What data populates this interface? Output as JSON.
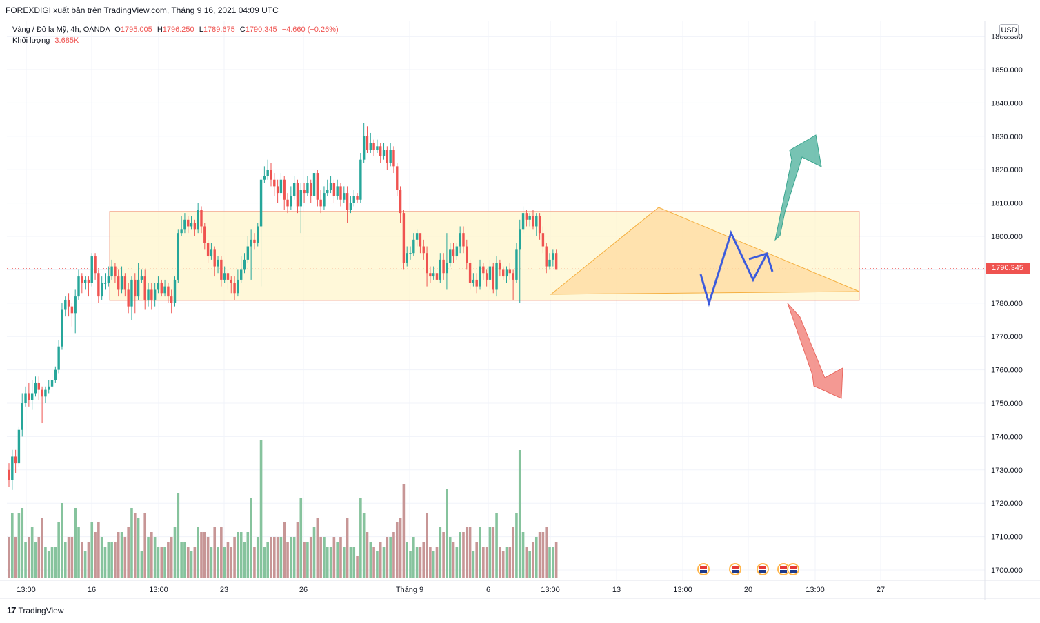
{
  "header": {
    "publish_text": "FOREXDIGI xuất bản trên TradingView.com, Tháng 9 16, 2021 04:09 UTC"
  },
  "legend": {
    "symbol": "Vàng / Đô la Mỹ, 4h, OANDA",
    "open_label": "O",
    "open": "1795.005",
    "high_label": "H",
    "high": "1796.250",
    "low_label": "L",
    "low": "1789.675",
    "close_label": "C",
    "close": "1790.345",
    "change": "−4.660 (−0.26%)",
    "volume_label": "Khối lượng",
    "volume": "3.685K"
  },
  "currency_badge": "USD",
  "last_price_tag": "1790.345",
  "footer": {
    "logo_icon": "tradingview-logo-icon",
    "brand": "TradingView"
  },
  "colors": {
    "up": "#26a69a",
    "down": "#ef5350",
    "vol_up": "#86c39d",
    "vol_down": "#c79696",
    "range_box": "#fff5cc",
    "triangle": "#ffd08a",
    "path": "#3c5bdc",
    "arrow_up": "#5fb9a6",
    "arrow_down": "#f28780"
  },
  "chart_data": {
    "type": "candlestick",
    "symbol": "Vàng / Đô la Mỹ",
    "interval": "4h",
    "exchange": "OANDA",
    "y_axis": {
      "ticks": [
        1700,
        1710,
        1720,
        1730,
        1740,
        1750,
        1760,
        1770,
        1780,
        1790,
        1800,
        1810,
        1820,
        1830,
        1840,
        1850,
        1860
      ],
      "tick_labels": [
        "1700.000",
        "1710.000",
        "1720.000",
        "1730.000",
        "1740.000",
        "1750.000",
        "1760.000",
        "1770.000",
        "1780.000",
        "1790.000",
        "1800.000",
        "1810.000",
        "1820.000",
        "1830.000",
        "1840.000",
        "1850.000",
        "1860.000"
      ],
      "ylim": [
        1697,
        1862
      ]
    },
    "x_axis": {
      "tick_labels": [
        "13:00",
        "16",
        "13:00",
        "23",
        "26",
        "Tháng 9",
        "6",
        "13:00",
        "13",
        "13:00",
        "20",
        "13:00",
        "27"
      ]
    },
    "last_price": 1790.345,
    "candles": [
      [
        1730,
        1727,
        1732,
        1725
      ],
      [
        1727,
        1734,
        1736,
        1724
      ],
      [
        1734,
        1732,
        1736,
        1729
      ],
      [
        1732,
        1742,
        1743,
        1731
      ],
      [
        1742,
        1750,
        1753,
        1740
      ],
      [
        1750,
        1753,
        1755,
        1749
      ],
      [
        1753,
        1751,
        1756,
        1749
      ],
      [
        1751,
        1753,
        1757,
        1748
      ],
      [
        1753,
        1756,
        1758,
        1752
      ],
      [
        1756,
        1754,
        1758,
        1751
      ],
      [
        1754,
        1752,
        1755,
        1744
      ],
      [
        1752,
        1754,
        1755,
        1750
      ],
      [
        1754,
        1755,
        1757,
        1753
      ],
      [
        1755,
        1757,
        1759,
        1754
      ],
      [
        1757,
        1760,
        1761,
        1756
      ],
      [
        1760,
        1767,
        1769,
        1759
      ],
      [
        1767,
        1778,
        1780,
        1766
      ],
      [
        1778,
        1781,
        1782,
        1776
      ],
      [
        1781,
        1779,
        1783,
        1776
      ],
      [
        1779,
        1777,
        1780,
        1773
      ],
      [
        1777,
        1782,
        1784,
        1771
      ],
      [
        1782,
        1788,
        1790,
        1781
      ],
      [
        1788,
        1786,
        1789,
        1783
      ],
      [
        1786,
        1787,
        1788,
        1784
      ],
      [
        1787,
        1786,
        1788,
        1782
      ],
      [
        1786,
        1794,
        1795,
        1785
      ],
      [
        1794,
        1789,
        1795,
        1787
      ],
      [
        1789,
        1782,
        1790,
        1780
      ],
      [
        1782,
        1786,
        1788,
        1781
      ],
      [
        1786,
        1786,
        1789,
        1784
      ],
      [
        1786,
        1788,
        1791,
        1785
      ],
      [
        1788,
        1791,
        1793,
        1787
      ],
      [
        1791,
        1788,
        1792,
        1786
      ],
      [
        1788,
        1784,
        1790,
        1782
      ],
      [
        1784,
        1788,
        1791,
        1783
      ],
      [
        1788,
        1784,
        1789,
        1782
      ],
      [
        1784,
        1779,
        1786,
        1777
      ],
      [
        1779,
        1787,
        1788,
        1775
      ],
      [
        1787,
        1782,
        1789,
        1777
      ],
      [
        1782,
        1787,
        1792,
        1781
      ],
      [
        1787,
        1788,
        1790,
        1786
      ],
      [
        1788,
        1781,
        1790,
        1778
      ],
      [
        1781,
        1784,
        1786,
        1779
      ],
      [
        1784,
        1781,
        1786,
        1778
      ],
      [
        1781,
        1784,
        1786,
        1779
      ],
      [
        1784,
        1786,
        1788,
        1783
      ],
      [
        1786,
        1783,
        1787,
        1782
      ],
      [
        1783,
        1785,
        1787,
        1782
      ],
      [
        1785,
        1782,
        1786,
        1780
      ],
      [
        1782,
        1780,
        1784,
        1777
      ],
      [
        1780,
        1787,
        1788,
        1779
      ],
      [
        1787,
        1801,
        1802,
        1786
      ],
      [
        1801,
        1802,
        1806,
        1800
      ],
      [
        1802,
        1805,
        1807,
        1801
      ],
      [
        1805,
        1803,
        1806,
        1801
      ],
      [
        1803,
        1804,
        1806,
        1802
      ],
      [
        1804,
        1802,
        1805,
        1800
      ],
      [
        1802,
        1808,
        1810,
        1801
      ],
      [
        1808,
        1803,
        1809,
        1801
      ],
      [
        1803,
        1798,
        1804,
        1796
      ],
      [
        1798,
        1794,
        1799,
        1792
      ],
      [
        1794,
        1796,
        1798,
        1793
      ],
      [
        1796,
        1791,
        1797,
        1788
      ],
      [
        1791,
        1793,
        1794,
        1789
      ],
      [
        1793,
        1787,
        1794,
        1785
      ],
      [
        1787,
        1789,
        1791,
        1786
      ],
      [
        1789,
        1787,
        1790,
        1784
      ],
      [
        1787,
        1786,
        1788,
        1783
      ],
      [
        1786,
        1783,
        1788,
        1781
      ],
      [
        1783,
        1787,
        1790,
        1782
      ],
      [
        1787,
        1790,
        1794,
        1786
      ],
      [
        1790,
        1793,
        1795,
        1789
      ],
      [
        1793,
        1797,
        1800,
        1792
      ],
      [
        1797,
        1799,
        1802,
        1787
      ],
      [
        1799,
        1798,
        1801,
        1796
      ],
      [
        1798,
        1803,
        1804,
        1797
      ],
      [
        1803,
        1817,
        1818,
        1785
      ],
      [
        1817,
        1818,
        1821,
        1816
      ],
      [
        1818,
        1820,
        1823,
        1817
      ],
      [
        1820,
        1817,
        1822,
        1815
      ],
      [
        1817,
        1815,
        1819,
        1812
      ],
      [
        1815,
        1813,
        1817,
        1810
      ],
      [
        1813,
        1817,
        1819,
        1812
      ],
      [
        1817,
        1811,
        1818,
        1808
      ],
      [
        1811,
        1809,
        1813,
        1807
      ],
      [
        1809,
        1812,
        1815,
        1808
      ],
      [
        1812,
        1816,
        1818,
        1811
      ],
      [
        1816,
        1809,
        1817,
        1807
      ],
      [
        1809,
        1814,
        1816,
        1801
      ],
      [
        1814,
        1813,
        1816,
        1810
      ],
      [
        1813,
        1816,
        1818,
        1812
      ],
      [
        1816,
        1812,
        1817,
        1810
      ],
      [
        1812,
        1819,
        1820,
        1811
      ],
      [
        1819,
        1811,
        1820,
        1809
      ],
      [
        1811,
        1809,
        1814,
        1807
      ],
      [
        1809,
        1813,
        1815,
        1808
      ],
      [
        1813,
        1814,
        1817,
        1812
      ],
      [
        1814,
        1816,
        1818,
        1813
      ],
      [
        1816,
        1812,
        1817,
        1810
      ],
      [
        1812,
        1815,
        1817,
        1811
      ],
      [
        1815,
        1811,
        1816,
        1809
      ],
      [
        1811,
        1813,
        1815,
        1810
      ],
      [
        1813,
        1808,
        1815,
        1804
      ],
      [
        1808,
        1810,
        1812,
        1807
      ],
      [
        1810,
        1812,
        1814,
        1809
      ],
      [
        1812,
        1811,
        1813,
        1810
      ],
      [
        1811,
        1823,
        1825,
        1810
      ],
      [
        1823,
        1830,
        1834,
        1822
      ],
      [
        1830,
        1826,
        1833,
        1825
      ],
      [
        1826,
        1828,
        1831,
        1825
      ],
      [
        1828,
        1826,
        1829,
        1824
      ],
      [
        1826,
        1827,
        1829,
        1825
      ],
      [
        1827,
        1824,
        1828,
        1822
      ],
      [
        1824,
        1826,
        1828,
        1823
      ],
      [
        1826,
        1822,
        1827,
        1820
      ],
      [
        1822,
        1826,
        1828,
        1821
      ],
      [
        1826,
        1821,
        1827,
        1819
      ],
      [
        1821,
        1814,
        1822,
        1812
      ],
      [
        1814,
        1807,
        1815,
        1804
      ],
      [
        1807,
        1792,
        1808,
        1790
      ],
      [
        1792,
        1795,
        1797,
        1791
      ],
      [
        1795,
        1795,
        1797,
        1793
      ],
      [
        1795,
        1799,
        1801,
        1794
      ],
      [
        1799,
        1801,
        1802,
        1797
      ],
      [
        1801,
        1797,
        1800,
        1795
      ],
      [
        1797,
        1795,
        1799,
        1793
      ],
      [
        1795,
        1789,
        1797,
        1785
      ],
      [
        1789,
        1788,
        1791,
        1786
      ],
      [
        1788,
        1789,
        1791,
        1787
      ],
      [
        1789,
        1787,
        1790,
        1785
      ],
      [
        1787,
        1793,
        1795,
        1786
      ],
      [
        1793,
        1789,
        1795,
        1787
      ],
      [
        1789,
        1792,
        1801,
        1784
      ],
      [
        1792,
        1796,
        1798,
        1791
      ],
      [
        1796,
        1794,
        1798,
        1792
      ],
      [
        1794,
        1797,
        1798,
        1793
      ],
      [
        1797,
        1801,
        1803,
        1795
      ],
      [
        1801,
        1797,
        1803,
        1795
      ],
      [
        1797,
        1792,
        1799,
        1790
      ],
      [
        1792,
        1786,
        1793,
        1784
      ],
      [
        1786,
        1787,
        1789,
        1785
      ],
      [
        1787,
        1785,
        1789,
        1783
      ],
      [
        1785,
        1791,
        1793,
        1784
      ],
      [
        1791,
        1789,
        1792,
        1787
      ],
      [
        1789,
        1787,
        1790,
        1785
      ],
      [
        1787,
        1791,
        1793,
        1784
      ],
      [
        1791,
        1784,
        1792,
        1783
      ],
      [
        1784,
        1792,
        1794,
        1782
      ],
      [
        1792,
        1790,
        1793,
        1788
      ],
      [
        1790,
        1788,
        1791,
        1787
      ],
      [
        1788,
        1790,
        1791,
        1786
      ],
      [
        1790,
        1789,
        1792,
        1787
      ],
      [
        1789,
        1787,
        1790,
        1781
      ],
      [
        1787,
        1796,
        1798,
        1786
      ],
      [
        1796,
        1802,
        1805,
        1780
      ],
      [
        1802,
        1807,
        1809,
        1801
      ],
      [
        1807,
        1805,
        1808,
        1803
      ],
      [
        1805,
        1806,
        1807,
        1803
      ],
      [
        1806,
        1803,
        1808,
        1802
      ],
      [
        1803,
        1806,
        1807,
        1800
      ],
      [
        1806,
        1801,
        1807,
        1799
      ],
      [
        1801,
        1797,
        1803,
        1795
      ],
      [
        1797,
        1791,
        1798,
        1789
      ],
      [
        1791,
        1793,
        1795,
        1790
      ],
      [
        1793,
        1795,
        1796,
        1791
      ],
      [
        1795,
        1790,
        1796,
        1790
      ]
    ],
    "volume_up_down": "volume bars colored by candle direction",
    "annotations": [
      {
        "type": "rectangle",
        "name": "consolidation-range",
        "price_top": 1807.5,
        "price_bottom": 1780.8
      },
      {
        "type": "triangle",
        "name": "descending-triangle"
      },
      {
        "type": "projection-path",
        "name": "forecast-zigzag"
      },
      {
        "type": "arrow",
        "name": "bullish-arrow",
        "direction": "up"
      },
      {
        "type": "arrow",
        "name": "bearish-arrow",
        "direction": "down"
      },
      {
        "type": "event-markers",
        "name": "us-economic-events",
        "count": 5
      }
    ]
  }
}
